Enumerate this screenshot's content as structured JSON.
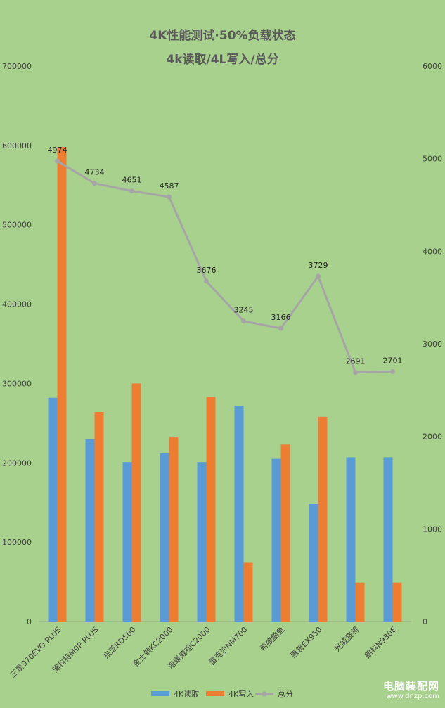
{
  "chart_data": {
    "type": "bar",
    "title": "4K性能测试·50%负载状态",
    "subtitle": "4k读取/4L写入/总分",
    "categories": [
      "三星970EVO PLUS",
      "浦科特M9P PLUS",
      "东芝RD500",
      "金士顿KC2000",
      "海康威视C2000",
      "雷克沙NM700",
      "希捷酷鱼",
      "惠普EX950",
      "光威骁将",
      "朗科N930E"
    ],
    "series": [
      {
        "name": "4K读取",
        "type": "bar",
        "axis": "left",
        "color": "#5b9bd5",
        "values": [
          282000,
          230000,
          201000,
          212000,
          201000,
          272000,
          205000,
          148000,
          207000,
          207000
        ]
      },
      {
        "name": "4K写入",
        "type": "bar",
        "axis": "left",
        "color": "#ed7d31",
        "values": [
          598000,
          264000,
          300000,
          232000,
          283000,
          74000,
          223000,
          258000,
          49000,
          49000
        ]
      },
      {
        "name": "总分",
        "type": "line",
        "axis": "right",
        "color": "#a5a5a5",
        "values": [
          4974,
          4734,
          4651,
          4587,
          3676,
          3245,
          3166,
          3729,
          2691,
          2701
        ]
      }
    ],
    "ylim_left": [
      0,
      700000
    ],
    "yticks_left": [
      "0",
      "100000",
      "200000",
      "300000",
      "400000",
      "500000",
      "600000",
      "700000"
    ],
    "ylim_right": [
      0,
      6000
    ],
    "yticks_right": [
      "0",
      "1000",
      "2000",
      "3000",
      "4000",
      "5000",
      "6000"
    ],
    "grid": false,
    "legend_position": "bottom"
  },
  "watermark": {
    "main": "电脑装配网",
    "url": "www.dnzp.com"
  }
}
